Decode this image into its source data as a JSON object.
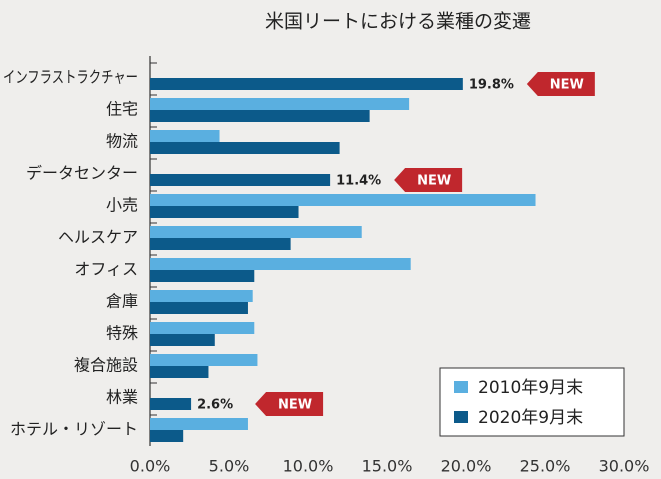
{
  "chart_data": {
    "type": "bar",
    "orientation": "horizontal",
    "title": "米国リートにおける業種の変遷",
    "categories": [
      "インフラストラクチャー",
      "住宅",
      "物流",
      "データセンター",
      "小売",
      "ヘルスケア",
      "オフィス",
      "倉庫",
      "特殊",
      "複合施設",
      "林業",
      "ホテル・リゾート"
    ],
    "series": [
      {
        "name": "2010年9月末",
        "color": "#5aafe0",
        "values": [
          null,
          16.4,
          4.4,
          null,
          24.4,
          13.4,
          16.5,
          6.5,
          6.6,
          6.8,
          null,
          6.2
        ]
      },
      {
        "name": "2020年9月末",
        "color": "#0c5a8a",
        "values": [
          19.8,
          13.9,
          12.0,
          11.4,
          9.4,
          8.9,
          6.6,
          6.2,
          4.1,
          3.7,
          2.6,
          2.1
        ],
        "value_labels": [
          "19.8%",
          null,
          null,
          "11.4%",
          null,
          null,
          null,
          null,
          null,
          null,
          "2.6%",
          null
        ],
        "badges": [
          "NEW",
          null,
          null,
          "NEW",
          null,
          null,
          null,
          null,
          null,
          null,
          "NEW",
          null
        ]
      }
    ],
    "xlim": [
      0,
      30
    ],
    "xticks": [
      {
        "value": 0,
        "label": "0.0%"
      },
      {
        "value": 5,
        "label": "5.0%"
      },
      {
        "value": 10,
        "label": "10.0%"
      },
      {
        "value": 15,
        "label": "15.0%"
      },
      {
        "value": 20,
        "label": "20.0%"
      },
      {
        "value": 25,
        "label": "25.0%"
      },
      {
        "value": 30,
        "label": "30.0%"
      }
    ],
    "legend": "lower right"
  }
}
